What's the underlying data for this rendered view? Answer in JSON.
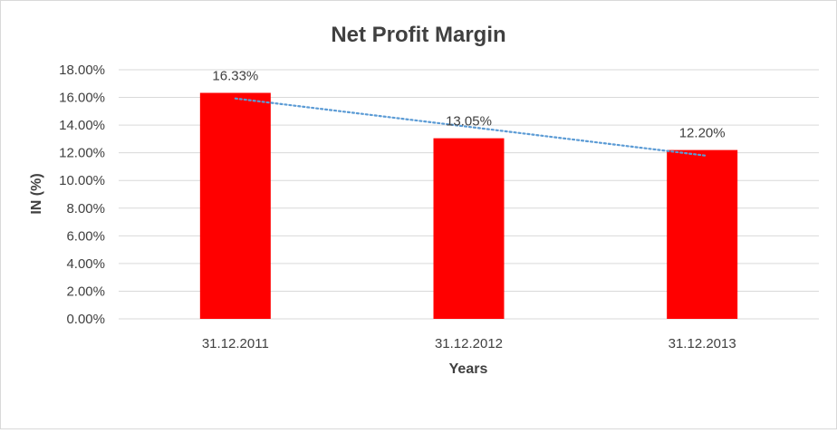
{
  "chart_data": {
    "type": "bar",
    "title": "Net Profit Margin",
    "xlabel": "Years",
    "ylabel": "IN (%)",
    "categories": [
      "31.12.2011",
      "31.12.2012",
      "31.12.2013"
    ],
    "values": [
      16.33,
      13.05,
      12.2
    ],
    "data_labels": [
      "16.33%",
      "13.05%",
      "12.20%"
    ],
    "ylim": [
      0,
      18
    ],
    "yticks": [
      0,
      2,
      4,
      6,
      8,
      10,
      12,
      14,
      16,
      18
    ],
    "ytick_labels": [
      "0.00%",
      "2.00%",
      "4.00%",
      "6.00%",
      "8.00%",
      "10.00%",
      "12.00%",
      "14.00%",
      "16.00%",
      "18.00%"
    ],
    "grid": true,
    "trendline": {
      "type": "linear",
      "style": "dotted"
    },
    "colors": {
      "bar": "#ff0000",
      "trendline": "#5b9bd5",
      "grid": "#d9d9d9",
      "text": "#404040"
    }
  }
}
